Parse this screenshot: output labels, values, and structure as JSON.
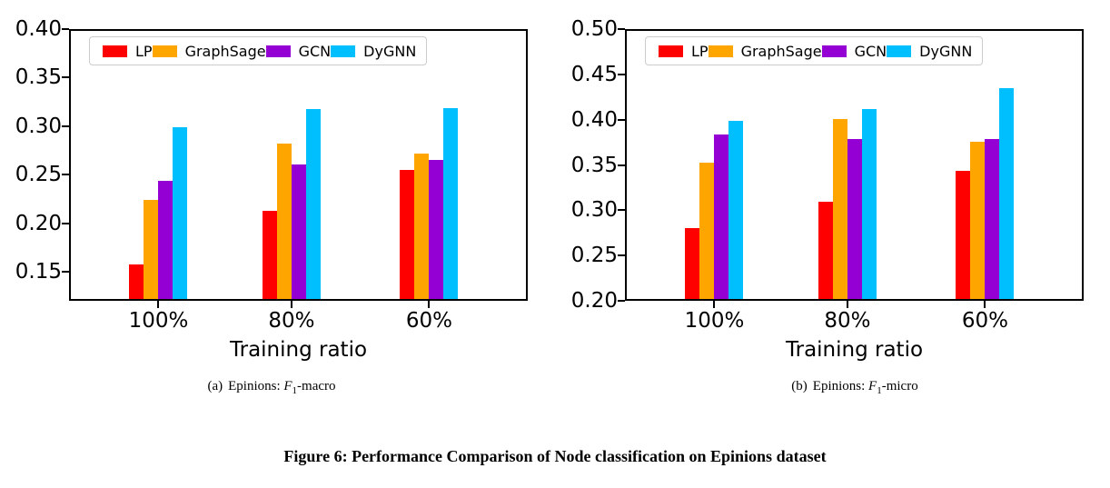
{
  "figure_caption": "Figure 6: Performance Comparison of Node classification on Epinions dataset",
  "colors": {
    "lp": "#ff0000",
    "graphsage": "#ffa500",
    "gcn": "#9400d3",
    "dygnn": "#00bfff",
    "axis": "#000000",
    "legend_border": "#cccccc"
  },
  "chart_data": [
    {
      "type": "bar",
      "caption": {
        "index": "(a)",
        "dataset": "Epinions:",
        "metric": "F",
        "metric_sub": "1",
        "suffix": "-macro"
      },
      "xlabel": "Training ratio",
      "ylabel": "",
      "categories": [
        "100%",
        "80%",
        "60%"
      ],
      "series": [
        {
          "name": "LP",
          "color": "#ff0000",
          "values": [
            0.156,
            0.211,
            0.253
          ]
        },
        {
          "name": "GraphSage",
          "color": "#ffa500",
          "values": [
            0.222,
            0.28,
            0.27
          ]
        },
        {
          "name": "GCN",
          "color": "#9400d3",
          "values": [
            0.242,
            0.259,
            0.263
          ]
        },
        {
          "name": "DyGNN",
          "color": "#00bfff",
          "values": [
            0.297,
            0.316,
            0.317
          ]
        }
      ],
      "ylim": [
        0.12,
        0.4
      ],
      "yticks": [
        0.15,
        0.2,
        0.25,
        0.3,
        0.35,
        0.4
      ],
      "grid": false,
      "legend_position": "upper center"
    },
    {
      "type": "bar",
      "caption": {
        "index": "(b)",
        "dataset": "Epinions:",
        "metric": "F",
        "metric_sub": "1",
        "suffix": "-micro"
      },
      "xlabel": "Training ratio",
      "ylabel": "",
      "categories": [
        "100%",
        "80%",
        "60%"
      ],
      "series": [
        {
          "name": "LP",
          "color": "#ff0000",
          "values": [
            0.278,
            0.307,
            0.342
          ]
        },
        {
          "name": "GraphSage",
          "color": "#ffa500",
          "values": [
            0.351,
            0.399,
            0.374
          ]
        },
        {
          "name": "GCN",
          "color": "#9400d3",
          "values": [
            0.382,
            0.377,
            0.377
          ]
        },
        {
          "name": "DyGNN",
          "color": "#00bfff",
          "values": [
            0.397,
            0.41,
            0.433
          ]
        }
      ],
      "ylim": [
        0.2,
        0.5
      ],
      "yticks": [
        0.2,
        0.25,
        0.3,
        0.35,
        0.4,
        0.45,
        0.5
      ],
      "grid": false,
      "legend_position": "upper center"
    }
  ]
}
